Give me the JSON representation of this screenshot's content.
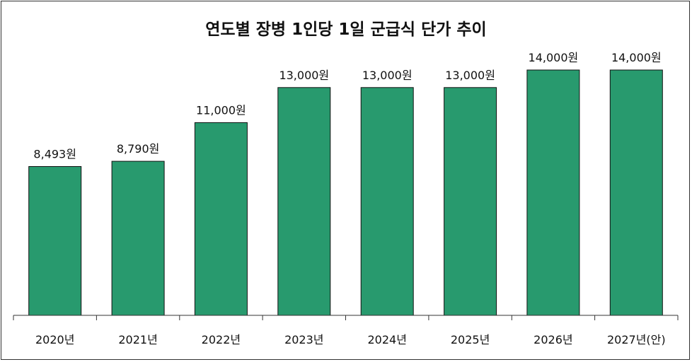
{
  "chart_data": {
    "type": "bar",
    "title": "연도별 장병 1인당 1일 군급식 단가 추이",
    "categories": [
      "2020년",
      "2021년",
      "2022년",
      "2023년",
      "2024년",
      "2025년",
      "2026년",
      "2027년(안)"
    ],
    "values": [
      8493,
      8790,
      11000,
      13000,
      13000,
      13000,
      14000,
      14000
    ],
    "data_labels": [
      "8,493원",
      "8,790원",
      "11,000원",
      "13,000원",
      "13,000원",
      "13,000원",
      "14,000원",
      "14,000원"
    ],
    "ylim": [
      0,
      14000
    ],
    "bar_color": "#289a6e",
    "grid": false,
    "legend": "none"
  }
}
